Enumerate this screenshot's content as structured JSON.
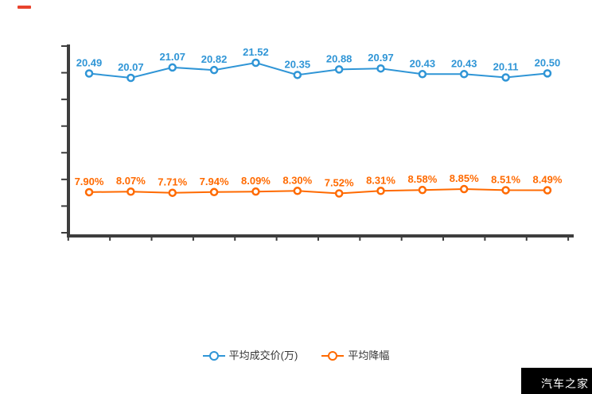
{
  "page": {
    "background": "#ffffff"
  },
  "decor": {
    "red_mark_color": "#e8432d"
  },
  "colors": {
    "axis": "#3d3d3d",
    "blue_series": "#2f95d6",
    "orange_series": "#ff6a00",
    "legend_text": "#333333"
  },
  "chart_data": {
    "type": "line",
    "title": "",
    "xlabel": "",
    "ylabel": "",
    "x_count": 12,
    "categories": [
      "",
      "",
      "",
      "",
      "",
      "",
      "",
      "",
      "",
      "",
      "",
      ""
    ],
    "x_axis_labels_visible": false,
    "y_axis_labels_visible": false,
    "grid": false,
    "legend_position": "bottom",
    "legend": [
      "平均成交价(万)",
      "平均降幅"
    ],
    "series": [
      {
        "name": "平均成交价(万)",
        "color": "#2f95d6",
        "values": [
          20.49,
          20.07,
          21.07,
          20.82,
          21.52,
          20.35,
          20.88,
          20.97,
          20.43,
          20.43,
          20.11,
          20.5
        ],
        "labels": [
          "20.49",
          "20.07",
          "21.07",
          "20.82",
          "21.52",
          "20.35",
          "20.88",
          "20.97",
          "20.43",
          "20.43",
          "20.11",
          "20.50"
        ]
      },
      {
        "name": "平均降幅",
        "color": "#ff6a00",
        "values": [
          7.9,
          8.07,
          7.71,
          7.94,
          8.09,
          8.3,
          7.52,
          8.31,
          8.58,
          8.85,
          8.51,
          8.49
        ],
        "labels": [
          "7.90%",
          "8.07%",
          "7.71%",
          "7.94%",
          "8.09%",
          "8.30%",
          "7.52%",
          "8.31%",
          "8.58%",
          "8.85%",
          "8.51%",
          "8.49%"
        ]
      }
    ]
  },
  "watermark": {
    "text": "汽车之家",
    "bg": "#000000",
    "color": "#ffffff"
  }
}
